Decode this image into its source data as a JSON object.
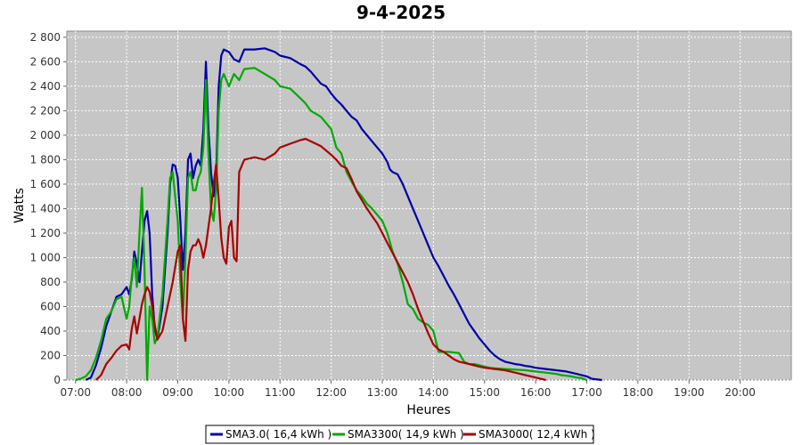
{
  "chart_data": {
    "type": "line",
    "title": "9-4-2025",
    "xlabel": "Heures",
    "ylabel": "Watts",
    "xlim": [
      6.83,
      21.0
    ],
    "ylim": [
      0,
      2850
    ],
    "x_ticks": [
      "07:00",
      "08:00",
      "09:00",
      "10:00",
      "11:00",
      "12:00",
      "13:00",
      "14:00",
      "15:00",
      "16:00",
      "17:00",
      "18:00",
      "19:00",
      "20:00"
    ],
    "y_ticks": [
      "0",
      "200",
      "400",
      "600",
      "800",
      "1 000",
      "1 200",
      "1 400",
      "1 600",
      "1 800",
      "2 000",
      "2 200",
      "2 400",
      "2 600",
      "2 800"
    ],
    "grid": true,
    "legend_position": "bottom",
    "series": [
      {
        "name": "SMA3.0( 16,4 kWh )",
        "color": "#0000aa",
        "points": [
          [
            7.2,
            0
          ],
          [
            7.3,
            20
          ],
          [
            7.4,
            120
          ],
          [
            7.5,
            260
          ],
          [
            7.6,
            440
          ],
          [
            7.7,
            560
          ],
          [
            7.8,
            680
          ],
          [
            7.9,
            700
          ],
          [
            8.0,
            760
          ],
          [
            8.05,
            700
          ],
          [
            8.1,
            820
          ],
          [
            8.15,
            1050
          ],
          [
            8.2,
            950
          ],
          [
            8.25,
            800
          ],
          [
            8.3,
            1050
          ],
          [
            8.35,
            1300
          ],
          [
            8.4,
            1380
          ],
          [
            8.45,
            1200
          ],
          [
            8.5,
            700
          ],
          [
            8.55,
            420
          ],
          [
            8.6,
            330
          ],
          [
            8.7,
            600
          ],
          [
            8.8,
            1200
          ],
          [
            8.85,
            1600
          ],
          [
            8.9,
            1760
          ],
          [
            8.95,
            1750
          ],
          [
            9.0,
            1650
          ],
          [
            9.05,
            1300
          ],
          [
            9.1,
            900
          ],
          [
            9.15,
            1200
          ],
          [
            9.2,
            1800
          ],
          [
            9.25,
            1850
          ],
          [
            9.3,
            1650
          ],
          [
            9.35,
            1750
          ],
          [
            9.4,
            1800
          ],
          [
            9.45,
            1750
          ],
          [
            9.5,
            2050
          ],
          [
            9.55,
            2600
          ],
          [
            9.6,
            2050
          ],
          [
            9.65,
            1700
          ],
          [
            9.7,
            1500
          ],
          [
            9.75,
            1650
          ],
          [
            9.8,
            2400
          ],
          [
            9.85,
            2650
          ],
          [
            9.9,
            2700
          ],
          [
            10.0,
            2680
          ],
          [
            10.1,
            2620
          ],
          [
            10.2,
            2600
          ],
          [
            10.3,
            2700
          ],
          [
            10.5,
            2700
          ],
          [
            10.7,
            2710
          ],
          [
            10.9,
            2680
          ],
          [
            11.0,
            2650
          ],
          [
            11.2,
            2630
          ],
          [
            11.4,
            2580
          ],
          [
            11.5,
            2560
          ],
          [
            11.6,
            2520
          ],
          [
            11.8,
            2420
          ],
          [
            11.9,
            2400
          ],
          [
            12.0,
            2340
          ],
          [
            12.1,
            2290
          ],
          [
            12.2,
            2250
          ],
          [
            12.3,
            2200
          ],
          [
            12.4,
            2150
          ],
          [
            12.5,
            2120
          ],
          [
            12.6,
            2050
          ],
          [
            12.7,
            2000
          ],
          [
            12.8,
            1950
          ],
          [
            12.9,
            1900
          ],
          [
            13.0,
            1850
          ],
          [
            13.1,
            1780
          ],
          [
            13.15,
            1720
          ],
          [
            13.2,
            1700
          ],
          [
            13.3,
            1680
          ],
          [
            13.4,
            1600
          ],
          [
            13.5,
            1500
          ],
          [
            13.6,
            1400
          ],
          [
            13.7,
            1300
          ],
          [
            13.8,
            1200
          ],
          [
            13.9,
            1100
          ],
          [
            14.0,
            1000
          ],
          [
            14.1,
            930
          ],
          [
            14.2,
            850
          ],
          [
            14.3,
            770
          ],
          [
            14.4,
            700
          ],
          [
            14.5,
            620
          ],
          [
            14.6,
            540
          ],
          [
            14.7,
            460
          ],
          [
            14.8,
            400
          ],
          [
            14.9,
            340
          ],
          [
            15.0,
            290
          ],
          [
            15.1,
            240
          ],
          [
            15.2,
            200
          ],
          [
            15.3,
            170
          ],
          [
            15.4,
            150
          ],
          [
            15.5,
            140
          ],
          [
            15.6,
            130
          ],
          [
            15.7,
            125
          ],
          [
            15.8,
            115
          ],
          [
            15.9,
            110
          ],
          [
            16.0,
            100
          ],
          [
            16.2,
            90
          ],
          [
            16.4,
            80
          ],
          [
            16.6,
            70
          ],
          [
            16.8,
            50
          ],
          [
            17.0,
            30
          ],
          [
            17.1,
            10
          ],
          [
            17.3,
            0
          ]
        ]
      },
      {
        "name": "SMA3300( 14,9 kWh )",
        "color": "#00aa00",
        "points": [
          [
            7.0,
            0
          ],
          [
            7.1,
            10
          ],
          [
            7.2,
            30
          ],
          [
            7.3,
            80
          ],
          [
            7.4,
            180
          ],
          [
            7.5,
            320
          ],
          [
            7.6,
            500
          ],
          [
            7.7,
            560
          ],
          [
            7.8,
            660
          ],
          [
            7.9,
            680
          ],
          [
            8.0,
            500
          ],
          [
            8.05,
            600
          ],
          [
            8.1,
            850
          ],
          [
            8.15,
            1000
          ],
          [
            8.2,
            760
          ],
          [
            8.25,
            1200
          ],
          [
            8.3,
            1570
          ],
          [
            8.35,
            900
          ],
          [
            8.4,
            0
          ],
          [
            8.45,
            600
          ],
          [
            8.5,
            500
          ],
          [
            8.55,
            300
          ],
          [
            8.6,
            350
          ],
          [
            8.7,
            700
          ],
          [
            8.8,
            1300
          ],
          [
            8.85,
            1650
          ],
          [
            8.9,
            1700
          ],
          [
            8.95,
            1500
          ],
          [
            9.0,
            1300
          ],
          [
            9.05,
            800
          ],
          [
            9.1,
            500
          ],
          [
            9.15,
            1000
          ],
          [
            9.2,
            1650
          ],
          [
            9.25,
            1700
          ],
          [
            9.3,
            1550
          ],
          [
            9.35,
            1550
          ],
          [
            9.4,
            1650
          ],
          [
            9.45,
            1700
          ],
          [
            9.5,
            1900
          ],
          [
            9.55,
            2450
          ],
          [
            9.6,
            1850
          ],
          [
            9.65,
            1400
          ],
          [
            9.7,
            1300
          ],
          [
            9.75,
            1550
          ],
          [
            9.8,
            2200
          ],
          [
            9.85,
            2450
          ],
          [
            9.9,
            2500
          ],
          [
            10.0,
            2400
          ],
          [
            10.1,
            2500
          ],
          [
            10.2,
            2450
          ],
          [
            10.3,
            2540
          ],
          [
            10.5,
            2550
          ],
          [
            10.7,
            2500
          ],
          [
            10.9,
            2450
          ],
          [
            11.0,
            2400
          ],
          [
            11.2,
            2380
          ],
          [
            11.4,
            2300
          ],
          [
            11.5,
            2260
          ],
          [
            11.6,
            2200
          ],
          [
            11.8,
            2150
          ],
          [
            11.9,
            2100
          ],
          [
            12.0,
            2050
          ],
          [
            12.1,
            1900
          ],
          [
            12.2,
            1850
          ],
          [
            12.3,
            1700
          ],
          [
            12.4,
            1620
          ],
          [
            12.5,
            1550
          ],
          [
            12.6,
            1500
          ],
          [
            12.7,
            1440
          ],
          [
            12.8,
            1400
          ],
          [
            12.9,
            1350
          ],
          [
            13.0,
            1300
          ],
          [
            13.1,
            1200
          ],
          [
            13.2,
            1050
          ],
          [
            13.3,
            950
          ],
          [
            13.4,
            800
          ],
          [
            13.5,
            620
          ],
          [
            13.6,
            580
          ],
          [
            13.7,
            500
          ],
          [
            13.8,
            470
          ],
          [
            13.9,
            450
          ],
          [
            14.0,
            400
          ],
          [
            14.1,
            230
          ],
          [
            14.2,
            230
          ],
          [
            14.3,
            230
          ],
          [
            14.5,
            220
          ],
          [
            14.6,
            150
          ],
          [
            14.7,
            130
          ],
          [
            14.8,
            130
          ],
          [
            14.9,
            120
          ],
          [
            15.0,
            110
          ],
          [
            15.1,
            100
          ],
          [
            15.2,
            95
          ],
          [
            15.4,
            90
          ],
          [
            15.6,
            85
          ],
          [
            15.8,
            80
          ],
          [
            16.0,
            70
          ],
          [
            16.2,
            60
          ],
          [
            16.4,
            50
          ],
          [
            16.5,
            40
          ],
          [
            16.6,
            35
          ],
          [
            16.7,
            30
          ],
          [
            16.8,
            20
          ],
          [
            16.9,
            15
          ],
          [
            17.0,
            0
          ]
        ]
      },
      {
        "name": "SMA3000( 12,4 kWh )",
        "color": "#aa0000",
        "points": [
          [
            7.4,
            0
          ],
          [
            7.5,
            40
          ],
          [
            7.6,
            130
          ],
          [
            7.7,
            180
          ],
          [
            7.8,
            240
          ],
          [
            7.9,
            280
          ],
          [
            8.0,
            290
          ],
          [
            8.05,
            250
          ],
          [
            8.1,
            420
          ],
          [
            8.15,
            520
          ],
          [
            8.2,
            380
          ],
          [
            8.25,
            500
          ],
          [
            8.3,
            620
          ],
          [
            8.35,
            700
          ],
          [
            8.4,
            760
          ],
          [
            8.45,
            720
          ],
          [
            8.5,
            600
          ],
          [
            8.55,
            450
          ],
          [
            8.6,
            330
          ],
          [
            8.7,
            400
          ],
          [
            8.8,
            600
          ],
          [
            8.9,
            800
          ],
          [
            9.0,
            1050
          ],
          [
            9.05,
            1100
          ],
          [
            9.1,
            500
          ],
          [
            9.15,
            320
          ],
          [
            9.2,
            900
          ],
          [
            9.25,
            1050
          ],
          [
            9.3,
            1100
          ],
          [
            9.35,
            1100
          ],
          [
            9.4,
            1150
          ],
          [
            9.45,
            1100
          ],
          [
            9.5,
            1000
          ],
          [
            9.55,
            1100
          ],
          [
            9.6,
            1250
          ],
          [
            9.65,
            1400
          ],
          [
            9.7,
            1600
          ],
          [
            9.75,
            1760
          ],
          [
            9.8,
            1480
          ],
          [
            9.85,
            1160
          ],
          [
            9.9,
            1000
          ],
          [
            9.95,
            950
          ],
          [
            10.0,
            1250
          ],
          [
            10.05,
            1300
          ],
          [
            10.1,
            1000
          ],
          [
            10.15,
            970
          ],
          [
            10.2,
            1700
          ],
          [
            10.3,
            1800
          ],
          [
            10.5,
            1820
          ],
          [
            10.7,
            1800
          ],
          [
            10.9,
            1850
          ],
          [
            11.0,
            1900
          ],
          [
            11.2,
            1930
          ],
          [
            11.4,
            1960
          ],
          [
            11.5,
            1970
          ],
          [
            11.6,
            1950
          ],
          [
            11.8,
            1910
          ],
          [
            12.0,
            1840
          ],
          [
            12.1,
            1800
          ],
          [
            12.2,
            1750
          ],
          [
            12.3,
            1730
          ],
          [
            12.4,
            1640
          ],
          [
            12.5,
            1540
          ],
          [
            12.6,
            1470
          ],
          [
            12.7,
            1400
          ],
          [
            12.8,
            1340
          ],
          [
            12.9,
            1280
          ],
          [
            13.0,
            1200
          ],
          [
            13.1,
            1120
          ],
          [
            13.2,
            1040
          ],
          [
            13.3,
            960
          ],
          [
            13.4,
            880
          ],
          [
            13.5,
            800
          ],
          [
            13.6,
            700
          ],
          [
            13.7,
            580
          ],
          [
            13.8,
            480
          ],
          [
            13.9,
            380
          ],
          [
            14.0,
            290
          ],
          [
            14.1,
            250
          ],
          [
            14.2,
            230
          ],
          [
            14.3,
            200
          ],
          [
            14.4,
            170
          ],
          [
            14.5,
            150
          ],
          [
            14.6,
            140
          ],
          [
            14.7,
            130
          ],
          [
            14.8,
            120
          ],
          [
            14.9,
            110
          ],
          [
            15.0,
            100
          ],
          [
            15.2,
            90
          ],
          [
            15.4,
            80
          ],
          [
            15.6,
            60
          ],
          [
            15.8,
            40
          ],
          [
            16.0,
            20
          ],
          [
            16.1,
            10
          ],
          [
            16.2,
            0
          ]
        ]
      }
    ]
  }
}
